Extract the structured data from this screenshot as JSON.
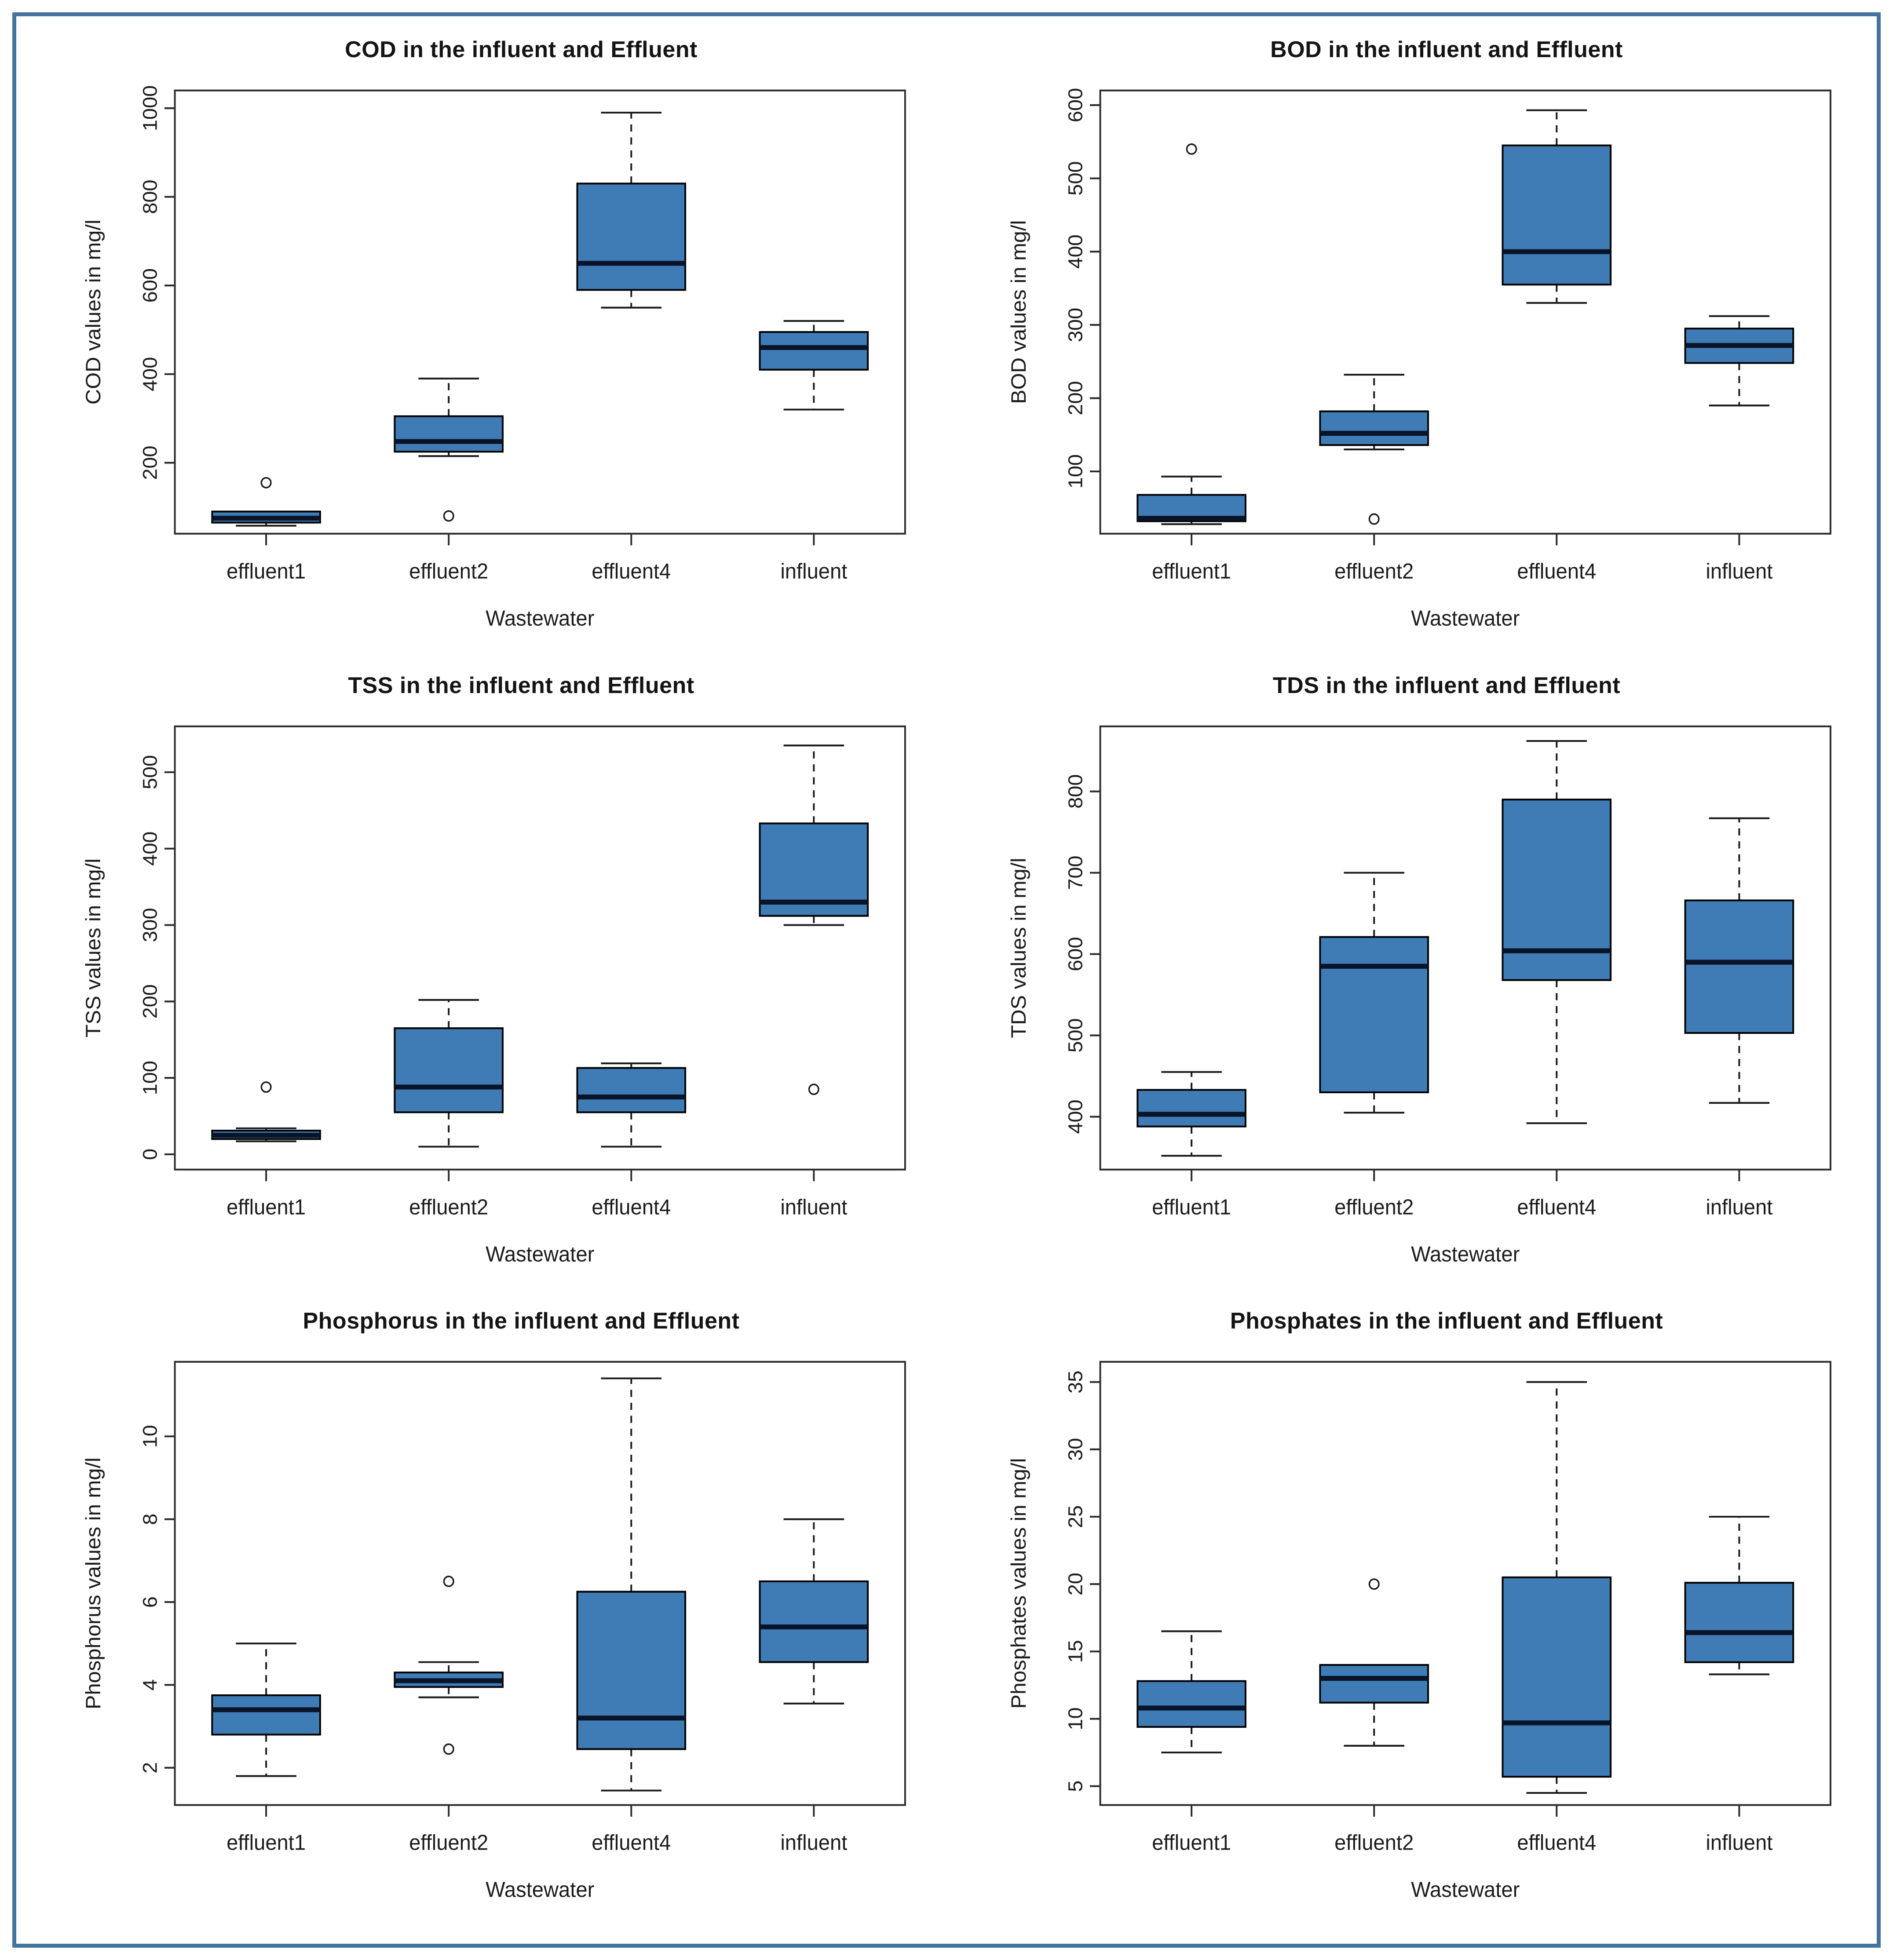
{
  "xlabel_shared": "Wastewater",
  "categories_shared": [
    "effluent1",
    "effluent2",
    "effluent4",
    "influent"
  ],
  "colors": {
    "box_fill": "#3F7CB5",
    "box_stroke": "#000000",
    "median": "#0A1428",
    "whisker": "#1A1A1A",
    "axis": "#2B2B2B",
    "text": "#1C1C1C",
    "frame_border": "#44749E",
    "background": "#FFFFFF"
  },
  "chart_data": [
    {
      "type": "boxplot",
      "title": "COD in the influent and Effluent",
      "xlabel": "Wastewater",
      "ylabel": "COD values in mg/l",
      "categories": [
        "effluent1",
        "effluent2",
        "effluent4",
        "influent"
      ],
      "yticks": [
        200,
        400,
        600,
        800,
        1000
      ],
      "ylim": [
        40,
        1040
      ],
      "boxes": [
        {
          "low": 58,
          "q1": 65,
          "median": 75,
          "q3": 90,
          "high": 90,
          "outliers": [
            155
          ]
        },
        {
          "low": 215,
          "q1": 225,
          "median": 248,
          "q3": 305,
          "high": 390,
          "outliers": [
            80
          ]
        },
        {
          "low": 550,
          "q1": 590,
          "median": 650,
          "q3": 830,
          "high": 990,
          "outliers": []
        },
        {
          "low": 320,
          "q1": 410,
          "median": 460,
          "q3": 495,
          "high": 520,
          "outliers": []
        }
      ]
    },
    {
      "type": "boxplot",
      "title": "BOD in the influent and Effluent",
      "xlabel": "Wastewater",
      "ylabel": "BOD values in mg/l",
      "categories": [
        "effluent1",
        "effluent2",
        "effluent4",
        "influent"
      ],
      "yticks": [
        100,
        200,
        300,
        400,
        500,
        600
      ],
      "ylim": [
        15,
        620
      ],
      "boxes": [
        {
          "low": 28,
          "q1": 32,
          "median": 36,
          "q3": 68,
          "high": 93,
          "outliers": [
            540
          ]
        },
        {
          "low": 130,
          "q1": 136,
          "median": 152,
          "q3": 182,
          "high": 232,
          "outliers": [
            35
          ]
        },
        {
          "low": 330,
          "q1": 355,
          "median": 400,
          "q3": 545,
          "high": 593,
          "outliers": []
        },
        {
          "low": 190,
          "q1": 248,
          "median": 272,
          "q3": 295,
          "high": 312,
          "outliers": []
        }
      ]
    },
    {
      "type": "boxplot",
      "title": "TSS in the influent and Effluent",
      "xlabel": "Wastewater",
      "ylabel": "TSS values in mg/l",
      "categories": [
        "effluent1",
        "effluent2",
        "effluent4",
        "influent"
      ],
      "yticks": [
        0,
        100,
        200,
        300,
        400,
        500
      ],
      "ylim": [
        -20,
        560
      ],
      "boxes": [
        {
          "low": 17,
          "q1": 20,
          "median": 25,
          "q3": 31,
          "high": 34,
          "outliers": [
            88
          ]
        },
        {
          "low": 10,
          "q1": 55,
          "median": 88,
          "q3": 165,
          "high": 202,
          "outliers": []
        },
        {
          "low": 10,
          "q1": 55,
          "median": 75,
          "q3": 113,
          "high": 119,
          "outliers": []
        },
        {
          "low": 300,
          "q1": 312,
          "median": 330,
          "q3": 433,
          "high": 535,
          "outliers": [
            85
          ]
        }
      ]
    },
    {
      "type": "boxplot",
      "title": "TDS in the influent and Effluent",
      "xlabel": "Wastewater",
      "ylabel": "TDS values in mg/l",
      "categories": [
        "effluent1",
        "effluent2",
        "effluent4",
        "influent"
      ],
      "yticks": [
        400,
        500,
        600,
        700,
        800
      ],
      "ylim": [
        335,
        880
      ],
      "boxes": [
        {
          "low": 352,
          "q1": 388,
          "median": 403,
          "q3": 433,
          "high": 455,
          "outliers": []
        },
        {
          "low": 405,
          "q1": 430,
          "median": 585,
          "q3": 621,
          "high": 700,
          "outliers": []
        },
        {
          "low": 392,
          "q1": 568,
          "median": 604,
          "q3": 790,
          "high": 862,
          "outliers": []
        },
        {
          "low": 417,
          "q1": 503,
          "median": 590,
          "q3": 666,
          "high": 767,
          "outliers": []
        }
      ]
    },
    {
      "type": "boxplot",
      "title": "Phosphorus in the influent and Effluent",
      "xlabel": "Wastewater",
      "ylabel": "Phosphorus values in mg/l",
      "categories": [
        "effluent1",
        "effluent2",
        "effluent4",
        "influent"
      ],
      "yticks": [
        2,
        4,
        6,
        8,
        10
      ],
      "ylim": [
        1.1,
        11.8
      ],
      "boxes": [
        {
          "low": 1.8,
          "q1": 2.8,
          "median": 3.4,
          "q3": 3.75,
          "high": 5.0,
          "outliers": []
        },
        {
          "low": 3.7,
          "q1": 3.95,
          "median": 4.1,
          "q3": 4.3,
          "high": 4.55,
          "outliers": [
            6.5,
            2.45
          ]
        },
        {
          "low": 1.45,
          "q1": 2.45,
          "median": 3.2,
          "q3": 6.25,
          "high": 11.4,
          "outliers": []
        },
        {
          "low": 3.55,
          "q1": 4.55,
          "median": 5.4,
          "q3": 6.5,
          "high": 8.0,
          "outliers": []
        }
      ]
    },
    {
      "type": "boxplot",
      "title": "Phosphates in the influent and Effluent",
      "xlabel": "Wastewater",
      "ylabel": "Phosphates values in mg/l",
      "categories": [
        "effluent1",
        "effluent2",
        "effluent4",
        "influent"
      ],
      "yticks": [
        5,
        10,
        15,
        20,
        25,
        30,
        35
      ],
      "ylim": [
        3.6,
        36.5
      ],
      "boxes": [
        {
          "low": 7.5,
          "q1": 9.4,
          "median": 10.8,
          "q3": 12.8,
          "high": 16.5,
          "outliers": []
        },
        {
          "low": 8.0,
          "q1": 11.2,
          "median": 13.0,
          "q3": 14.0,
          "high": 14.0,
          "outliers": [
            20
          ]
        },
        {
          "low": 4.5,
          "q1": 5.7,
          "median": 9.7,
          "q3": 20.5,
          "high": 35.0,
          "outliers": []
        },
        {
          "low": 13.3,
          "q1": 14.2,
          "median": 16.4,
          "q3": 20.1,
          "high": 25.0,
          "outliers": []
        }
      ]
    }
  ]
}
